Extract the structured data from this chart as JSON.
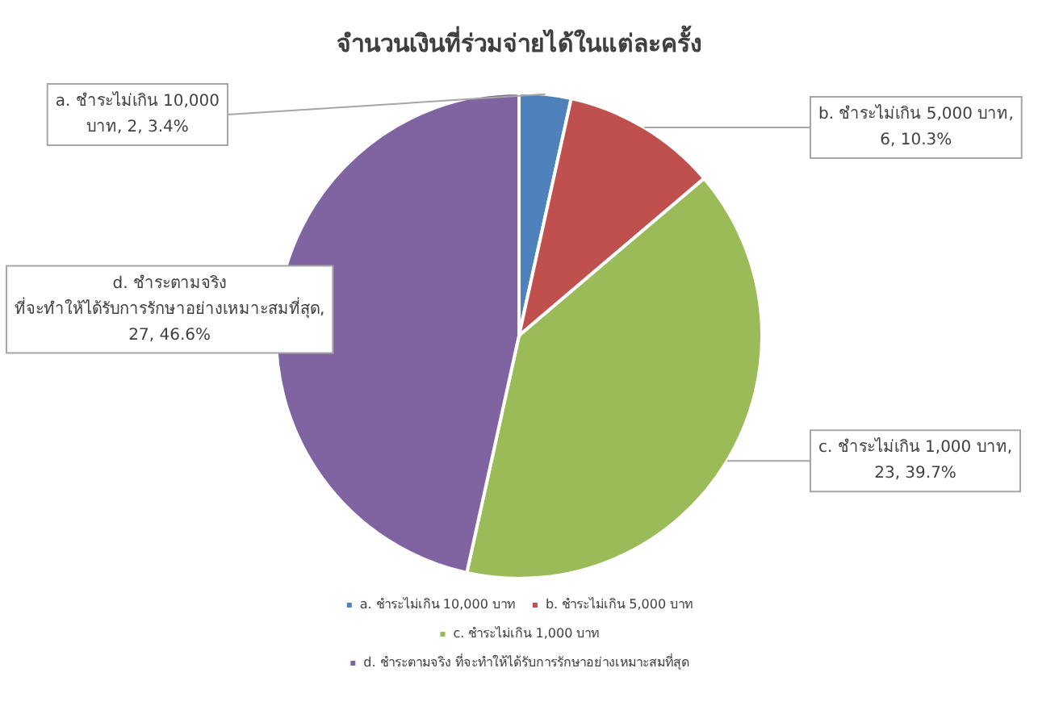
{
  "chart_data": {
    "type": "pie",
    "title": "จำนวนเงินที่ร่วมจ่ายได้ในแต่ละครั้ง",
    "categories": [
      "a. ชำระไม่เกิน 10,000 บาท",
      "b. ชำระไม่เกิน 5,000 บาท",
      "c. ชำระไม่เกิน 1,000 บาท",
      "d. ชำระตามจริง ที่จะทำให้ได้รับการรักษาอย่างเหมาะสมที่สุด"
    ],
    "values": [
      2,
      6,
      23,
      27
    ],
    "value_labels": [
      "a. ชำระไม่เกิน 10,000 บาท, 2, 3.4%",
      "b. ชำระไม่เกิน 5,000 บาท, 6, 10.3%",
      "c. ชำระไม่เกิน 1,000 บาท, 23, 39.7%",
      "d. ชำระตามจริง ที่จะทำให้ได้รับการรักษาอย่างเหมาะสมที่สุด, 27, 46.6%"
    ],
    "colors": [
      "#4f81bd",
      "#c0504d",
      "#9bbb59",
      "#8064a2"
    ],
    "legend": "bottom"
  }
}
